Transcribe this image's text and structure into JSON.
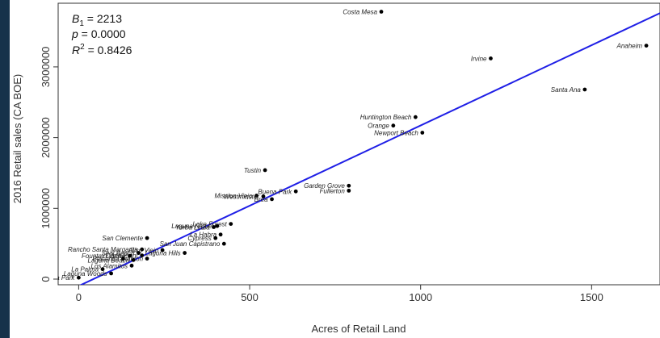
{
  "chart_data": {
    "type": "scatter",
    "title": "",
    "xlabel": "Acres of Retail Land",
    "ylabel": "2016 Retail sales (CA BOE)",
    "xlim": [
      -60,
      1700
    ],
    "ylim": [
      -80000,
      3900000
    ],
    "x_ticks": [
      0,
      500,
      1000,
      1500
    ],
    "x_tick_labels": [
      "0",
      "500",
      "1000",
      "1500"
    ],
    "y_ticks": [
      0,
      1000000,
      2000000,
      3000000
    ],
    "y_tick_labels": [
      "0",
      "1000000",
      "2000000",
      "3000000"
    ],
    "grid": false,
    "point_color": "#000000",
    "line_color": "#1f1fe6",
    "annotation": {
      "b": "B",
      "b_sub": "1",
      "b_val": " = 2213",
      "p": "p",
      "p_val": " = 0.0000",
      "r": "R",
      "r_sup": "2",
      "r_val": " = 0.8426"
    },
    "regression": {
      "x1": -10,
      "y1": -120000,
      "x2": 1700,
      "y2": 3760000
    },
    "points": [
      {
        "label": "Costa Mesa",
        "x": 885,
        "y": 3780000
      },
      {
        "label": "Irvine",
        "x": 1205,
        "y": 3120000
      },
      {
        "label": "Anaheim",
        "x": 1660,
        "y": 3300000
      },
      {
        "label": "Santa Ana",
        "x": 1480,
        "y": 2680000
      },
      {
        "label": "Huntington Beach",
        "x": 985,
        "y": 2290000
      },
      {
        "label": "Orange",
        "x": 920,
        "y": 2170000
      },
      {
        "label": "Newport Beach",
        "x": 1005,
        "y": 2070000
      },
      {
        "label": "Tustin",
        "x": 545,
        "y": 1540000
      },
      {
        "label": "Garden Grove",
        "x": 790,
        "y": 1320000
      },
      {
        "label": "Fullerton",
        "x": 790,
        "y": 1250000
      },
      {
        "label": "Buena Park",
        "x": 635,
        "y": 1240000
      },
      {
        "label": "Mission Viejo",
        "x": 520,
        "y": 1180000
      },
      {
        "label": "Westminster",
        "x": 540,
        "y": 1170000
      },
      {
        "label": "Brea",
        "x": 565,
        "y": 1130000
      },
      {
        "label": "Lake Forest",
        "x": 445,
        "y": 780000
      },
      {
        "label": "Laguna Niguel",
        "x": 405,
        "y": 750000
      },
      {
        "label": "Yorba Linda",
        "x": 395,
        "y": 735000
      },
      {
        "label": "La Habra",
        "x": 415,
        "y": 630000
      },
      {
        "label": "Cypress",
        "x": 400,
        "y": 580000
      },
      {
        "label": "San Clemente",
        "x": 200,
        "y": 580000
      },
      {
        "label": "San Juan Capistrano",
        "x": 425,
        "y": 500000
      },
      {
        "label": "Rancho Santa Margarita",
        "x": 185,
        "y": 420000
      },
      {
        "label": "Aliso Viejo",
        "x": 245,
        "y": 410000
      },
      {
        "label": "Laguna Hills",
        "x": 310,
        "y": 370000
      },
      {
        "label": "Seal Beach",
        "x": 175,
        "y": 370000
      },
      {
        "label": "Dana Point",
        "x": 185,
        "y": 335000
      },
      {
        "label": "Stanton",
        "x": 200,
        "y": 290000
      },
      {
        "label": "Fountain Valley",
        "x": 150,
        "y": 330000
      },
      {
        "label": "Laguna Beach",
        "x": 160,
        "y": 270000
      },
      {
        "label": "Placentia",
        "x": 130,
        "y": 290000
      },
      {
        "label": "Los Alamitos",
        "x": 155,
        "y": 190000
      },
      {
        "label": "La Palma",
        "x": 70,
        "y": 140000
      },
      {
        "label": "Laguna Woods",
        "x": 95,
        "y": 80000
      },
      {
        "label": "Villa Park",
        "x": 0,
        "y": 20000
      }
    ]
  }
}
